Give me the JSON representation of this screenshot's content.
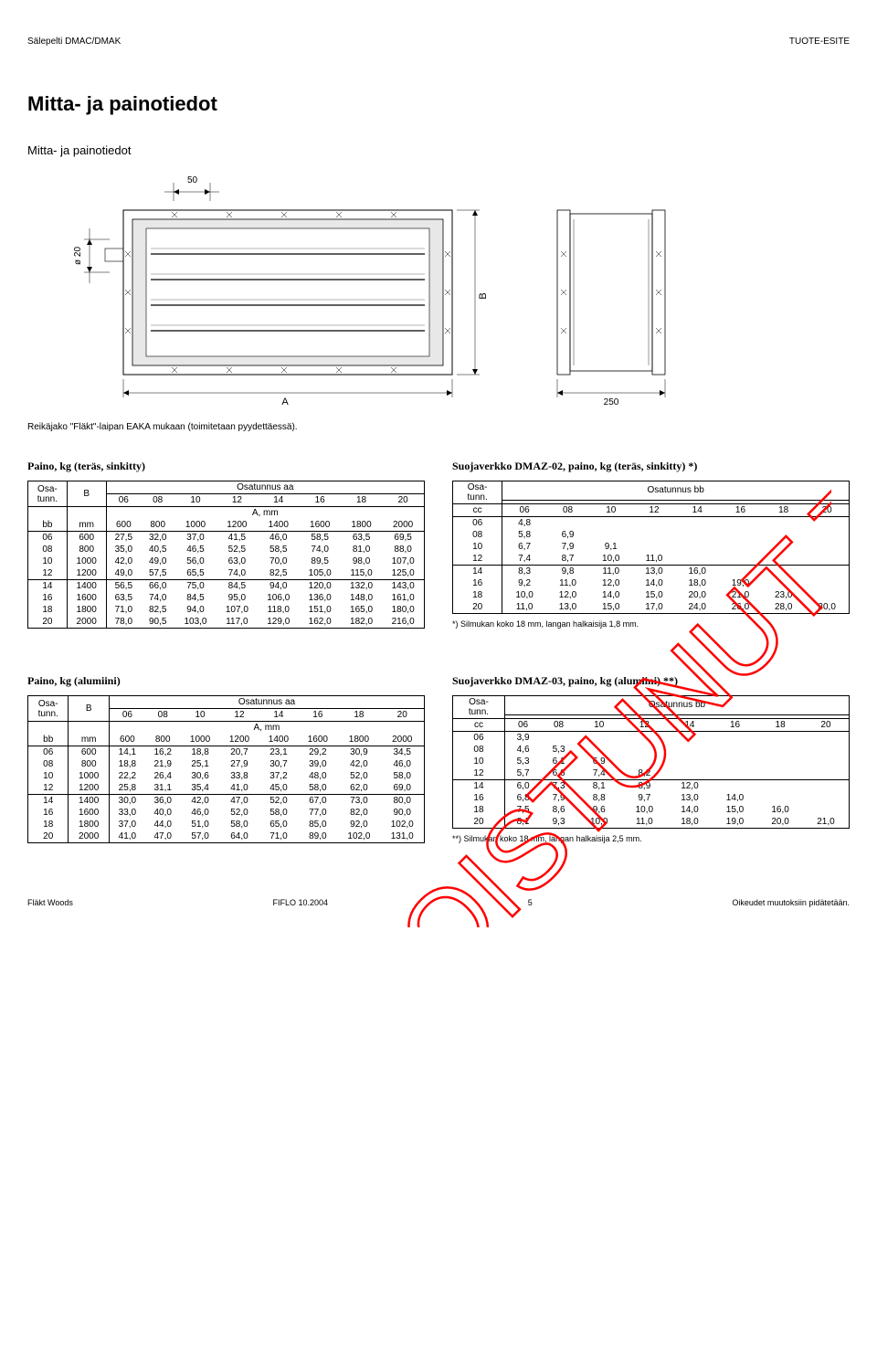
{
  "header": {
    "left": "Sälepelti DMAC/DMAK",
    "right": "TUOTE-ESITE"
  },
  "main_title": "Mitta- ja painotiedot",
  "sub_title": "Mitta- ja painotiedot",
  "diagram": {
    "dim_50": "50",
    "dim_o20": "ø 20",
    "label_A": "A",
    "label_B": "B",
    "dim_250": "250"
  },
  "caption": "Reikäjako \"Fläkt\"-laipan EAKA mukaan (toimitetaan pyydettäessä).",
  "watermark": "POISTUNUT TUOTE",
  "table_steel": {
    "title": "Paino, kg (teräs, sinkitty)",
    "osa_label": "Osa-\ntunn.",
    "B_label": "B",
    "group_label": "Osatunnus aa",
    "a_mm": "A, mm",
    "cols_aa": [
      "06",
      "08",
      "10",
      "12",
      "14",
      "16",
      "18",
      "20"
    ],
    "bb_label": "bb",
    "mm_label": "mm",
    "col_mm": [
      "600",
      "800",
      "1000",
      "1200",
      "1400",
      "1600",
      "1800",
      "2000"
    ],
    "rows": [
      [
        "06",
        "600",
        "27,5",
        "32,0",
        "37,0",
        "41,5",
        "46,0",
        "58,5",
        "63,5",
        "69,5"
      ],
      [
        "08",
        "800",
        "35,0",
        "40,5",
        "46,5",
        "52,5",
        "58,5",
        "74,0",
        "81,0",
        "88,0"
      ],
      [
        "10",
        "1000",
        "42,0",
        "49,0",
        "56,0",
        "63,0",
        "70,0",
        "89,5",
        "98,0",
        "107,0"
      ],
      [
        "12",
        "1200",
        "49,0",
        "57,5",
        "65,5",
        "74,0",
        "82,5",
        "105,0",
        "115,0",
        "125,0"
      ],
      [
        "14",
        "1400",
        "56,5",
        "66,0",
        "75,0",
        "84,5",
        "94,0",
        "120,0",
        "132,0",
        "143,0"
      ],
      [
        "16",
        "1600",
        "63,5",
        "74,0",
        "84,5",
        "95,0",
        "106,0",
        "136,0",
        "148,0",
        "161,0"
      ],
      [
        "18",
        "1800",
        "71,0",
        "82,5",
        "94,0",
        "107,0",
        "118,0",
        "151,0",
        "165,0",
        "180,0"
      ],
      [
        "20",
        "2000",
        "78,0",
        "90,5",
        "103,0",
        "117,0",
        "129,0",
        "162,0",
        "182,0",
        "216,0"
      ]
    ]
  },
  "table_dmaz02": {
    "title": "Suojaverkko DMAZ-02, paino, kg (teräs, sinkitty) *)",
    "osa_label": "Osa-\ntunn.",
    "group_label": "Osatunnus bb",
    "cc_label": "cc",
    "cols": [
      "06",
      "08",
      "10",
      "12",
      "14",
      "16",
      "18",
      "20"
    ],
    "rows": [
      [
        "06",
        "4,8",
        "",
        "",
        "",
        "",
        "",
        "",
        ""
      ],
      [
        "08",
        "5,8",
        "6,9",
        "",
        "",
        "",
        "",
        "",
        ""
      ],
      [
        "10",
        "6,7",
        "7,9",
        "9,1",
        "",
        "",
        "",
        "",
        ""
      ],
      [
        "12",
        "7,4",
        "8,7",
        "10,0",
        "11,0",
        "",
        "",
        "",
        ""
      ],
      [
        "14",
        "8,3",
        "9,8",
        "11,0",
        "13,0",
        "16,0",
        "",
        "",
        ""
      ],
      [
        "16",
        "9,2",
        "11,0",
        "12,0",
        "14,0",
        "18,0",
        "19,0",
        "",
        ""
      ],
      [
        "18",
        "10,0",
        "12,0",
        "14,0",
        "15,0",
        "20,0",
        "21,0",
        "23,0",
        ""
      ],
      [
        "20",
        "11,0",
        "13,0",
        "15,0",
        "17,0",
        "24,0",
        "26,0",
        "28,0",
        "30,0"
      ]
    ],
    "footnote": "*) Silmukan koko 18 mm, langan halkaisija 1,8 mm."
  },
  "table_alu": {
    "title": "Paino, kg (alumiini)",
    "osa_label": "Osa-\ntunn.",
    "B_label": "B",
    "group_label": "Osatunnus aa",
    "a_mm": "A, mm",
    "cols_aa": [
      "06",
      "08",
      "10",
      "12",
      "14",
      "16",
      "18",
      "20"
    ],
    "bb_label": "bb",
    "mm_label": "mm",
    "col_mm": [
      "600",
      "800",
      "1000",
      "1200",
      "1400",
      "1600",
      "1800",
      "2000"
    ],
    "rows": [
      [
        "06",
        "600",
        "14,1",
        "16,2",
        "18,8",
        "20,7",
        "23,1",
        "29,2",
        "30,9",
        "34,5"
      ],
      [
        "08",
        "800",
        "18,8",
        "21,9",
        "25,1",
        "27,9",
        "30,7",
        "39,0",
        "42,0",
        "46,0"
      ],
      [
        "10",
        "1000",
        "22,2",
        "26,4",
        "30,6",
        "33,8",
        "37,2",
        "48,0",
        "52,0",
        "58,0"
      ],
      [
        "12",
        "1200",
        "25,8",
        "31,1",
        "35,4",
        "41,0",
        "45,0",
        "58,0",
        "62,0",
        "69,0"
      ],
      [
        "14",
        "1400",
        "30,0",
        "36,0",
        "42,0",
        "47,0",
        "52,0",
        "67,0",
        "73,0",
        "80,0"
      ],
      [
        "16",
        "1600",
        "33,0",
        "40,0",
        "46,0",
        "52,0",
        "58,0",
        "77,0",
        "82,0",
        "90,0"
      ],
      [
        "18",
        "1800",
        "37,0",
        "44,0",
        "51,0",
        "58,0",
        "65,0",
        "85,0",
        "92,0",
        "102,0"
      ],
      [
        "20",
        "2000",
        "41,0",
        "47,0",
        "57,0",
        "64,0",
        "71,0",
        "89,0",
        "102,0",
        "131,0"
      ]
    ]
  },
  "table_dmaz03": {
    "title": "Suojaverkko DMAZ-03, paino, kg (alumiini) **)",
    "osa_label": "Osa-\ntunn.",
    "group_label": "Osatunnus bb",
    "cc_label": "cc",
    "cols": [
      "06",
      "08",
      "10",
      "12",
      "14",
      "16",
      "18",
      "20"
    ],
    "rows": [
      [
        "06",
        "3,9",
        "",
        "",
        "",
        "",
        "",
        "",
        ""
      ],
      [
        "08",
        "4,6",
        "5,3",
        "",
        "",
        "",
        "",
        "",
        ""
      ],
      [
        "10",
        "5,3",
        "6,1",
        "6,9",
        "",
        "",
        "",
        "",
        ""
      ],
      [
        "12",
        "5,7",
        "6,6",
        "7,4",
        "8,2",
        "",
        "",
        "",
        ""
      ],
      [
        "14",
        "6,0",
        "7,3",
        "8,1",
        "8,9",
        "12,0",
        "",
        "",
        ""
      ],
      [
        "16",
        "6,8",
        "7,9",
        "8,8",
        "9,7",
        "13,0",
        "14,0",
        "",
        ""
      ],
      [
        "18",
        "7,5",
        "8,6",
        "9,6",
        "10,0",
        "14,0",
        "15,0",
        "16,0",
        ""
      ],
      [
        "20",
        "8,1",
        "9,3",
        "10,0",
        "11,0",
        "18,0",
        "19,0",
        "20,0",
        "21,0"
      ]
    ],
    "footnote": "**) Silmukan koko 18 mm, langan halkaisija 2,5 mm."
  },
  "footer": {
    "left": "Fläkt Woods",
    "center": "FIFLO 10.2004",
    "page": "5",
    "right": "Oikeudet muutoksiin pidätetään."
  }
}
